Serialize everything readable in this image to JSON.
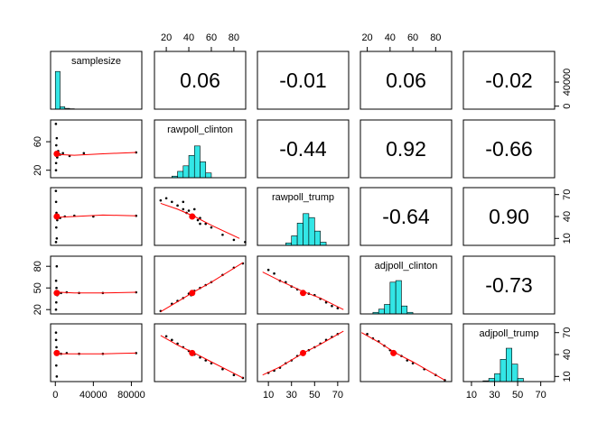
{
  "chart_data": {
    "type": "pairs",
    "point_color": "#000000",
    "hist_color": "#33E6E6",
    "fit_color": "#FF0000",
    "variables": [
      {
        "name": "samplesize",
        "lim": [
          -5000,
          91000
        ],
        "xticks": [
          0,
          40000,
          80000
        ],
        "yticks": [
          0,
          40000
        ],
        "mean": 1500,
        "hist": {
          "bins": [
            0,
            5000,
            10000,
            15000,
            20000
          ],
          "counts": [
            95,
            6,
            2,
            1
          ],
          "ylim": [
            0,
            100
          ]
        }
      },
      {
        "name": "rawpoll_clinton",
        "lim": [
          9.5,
          90.5
        ],
        "xticks": [
          20,
          40,
          60,
          80
        ],
        "yticks": [
          20,
          60
        ],
        "mean": 43,
        "hist": {
          "bins": [
            25,
            30,
            35,
            40,
            45,
            50,
            55,
            60
          ],
          "counts": [
            2,
            8,
            15,
            28,
            40,
            20,
            6
          ],
          "ylim": [
            0,
            50
          ]
        }
      },
      {
        "name": "rawpoll_trump",
        "lim": [
          0.5,
          79.5
        ],
        "xticks": [
          10,
          30,
          50,
          70
        ],
        "yticks": [
          10,
          40,
          70
        ],
        "mean": 40,
        "hist": {
          "bins": [
            25,
            30,
            35,
            40,
            45,
            50,
            55,
            60
          ],
          "counts": [
            3,
            12,
            28,
            40,
            35,
            18,
            4
          ],
          "ylim": [
            0,
            50
          ]
        }
      },
      {
        "name": "adjpoll_clinton",
        "lim": [
          14,
          94
        ],
        "xticks": [
          20,
          40,
          60,
          80
        ],
        "yticks": [
          20,
          50,
          80
        ],
        "mean": 43,
        "hist": {
          "bins": [
            25,
            30,
            35,
            40,
            45,
            50,
            55,
            60
          ],
          "counts": [
            2,
            6,
            12,
            40,
            42,
            10,
            2
          ],
          "ylim": [
            0,
            50
          ]
        }
      },
      {
        "name": "adjpoll_trump",
        "lim": [
          3,
          82
        ],
        "xticks": [
          10,
          30,
          50,
          70
        ],
        "yticks": [
          10,
          40,
          70
        ],
        "mean": 42,
        "hist": {
          "bins": [
            20,
            25,
            30,
            35,
            40,
            45,
            50,
            55
          ],
          "counts": [
            1,
            4,
            10,
            28,
            42,
            22,
            4
          ],
          "ylim": [
            0,
            50
          ]
        }
      }
    ],
    "correlations": [
      {
        "value": 0.06,
        "label": "0.06"
      },
      {
        "value": -0.01,
        "label": "-0.01"
      },
      {
        "value": 0.06,
        "label": "0.06"
      },
      {
        "value": -0.02,
        "label": "-0.02"
      },
      {
        "value": -0.44,
        "label": "-0.44"
      },
      {
        "value": 0.92,
        "label": "0.92"
      },
      {
        "value": -0.66,
        "label": "-0.66"
      },
      {
        "value": -0.64,
        "label": "-0.64"
      },
      {
        "value": 0.9,
        "label": "0.90"
      },
      {
        "value": -0.73,
        "label": "-0.73"
      }
    ],
    "panels": [
      {
        "x": [
          500,
          800,
          1000,
          1200,
          1500,
          2000,
          3000,
          5000,
          8000,
          15000,
          30000,
          85000,
          600,
          700
        ],
        "y": [
          45,
          30,
          55,
          40,
          65,
          38,
          47,
          42,
          44,
          40,
          44,
          45,
          85,
          20
        ],
        "loess_x": [
          0,
          5000,
          20000,
          50000,
          85000
        ],
        "loess_y": [
          41,
          42,
          41,
          43,
          45
        ]
      },
      {
        "x": [
          500,
          800,
          1000,
          1200,
          1500,
          2000,
          3000,
          5000,
          10000,
          20000,
          40000,
          85000,
          600,
          700
        ],
        "y": [
          40,
          60,
          25,
          45,
          10,
          35,
          42,
          38,
          40,
          41,
          40,
          41,
          75,
          5
        ],
        "loess_x": [
          0,
          5000,
          20000,
          50000,
          85000
        ],
        "loess_y": [
          40,
          39,
          40,
          42,
          41
        ]
      },
      {
        "x": [
          15,
          20,
          25,
          30,
          35,
          38,
          40,
          42,
          45,
          48,
          50,
          55,
          60,
          70,
          80,
          90,
          35,
          45,
          50
        ],
        "y": [
          62,
          65,
          60,
          55,
          50,
          45,
          48,
          42,
          40,
          35,
          38,
          30,
          25,
          15,
          8,
          5,
          60,
          50,
          30
        ],
        "loess_x": [
          15,
          30,
          45,
          60,
          85
        ],
        "loess_y": [
          58,
          50,
          40,
          28,
          10
        ]
      },
      {
        "x": [
          500,
          800,
          1000,
          1200,
          1500,
          2000,
          3000,
          6000,
          12000,
          25000,
          50000,
          85000,
          700
        ],
        "y": [
          44,
          60,
          30,
          50,
          80,
          40,
          45,
          43,
          44,
          43,
          43,
          44,
          20
        ],
        "loess_x": [
          0,
          5000,
          20000,
          50000,
          85000
        ],
        "loess_y": [
          43,
          44,
          43,
          43,
          44
        ]
      },
      {
        "x": [
          15,
          25,
          30,
          35,
          40,
          42,
          45,
          50,
          55,
          60,
          70,
          80,
          88
        ],
        "y": [
          18,
          28,
          32,
          36,
          42,
          40,
          46,
          50,
          54,
          58,
          68,
          78,
          84
        ],
        "loess_x": [
          15,
          30,
          45,
          60,
          88
        ],
        "loess_y": [
          17,
          31,
          45,
          58,
          85
        ]
      },
      {
        "x": [
          10,
          15,
          20,
          25,
          30,
          35,
          40,
          45,
          50,
          55,
          60,
          65,
          70
        ],
        "y": [
          75,
          70,
          60,
          58,
          52,
          48,
          45,
          42,
          40,
          35,
          30,
          25,
          22
        ],
        "loess_x": [
          5,
          20,
          40,
          55,
          75
        ],
        "loess_y": [
          72,
          60,
          45,
          36,
          20
        ]
      },
      {
        "x": [
          500,
          800,
          1000,
          1200,
          1500,
          2000,
          3000,
          6000,
          12000,
          25000,
          50000,
          85000,
          700
        ],
        "y": [
          42,
          60,
          25,
          50,
          10,
          40,
          44,
          41,
          42,
          41,
          41,
          42,
          70
        ],
        "loess_x": [
          0,
          5000,
          20000,
          50000,
          85000
        ],
        "loess_y": [
          42,
          41,
          41,
          41,
          42
        ]
      },
      {
        "x": [
          20,
          25,
          30,
          35,
          40,
          42,
          45,
          50,
          55,
          60,
          70,
          80,
          88
        ],
        "y": [
          65,
          60,
          55,
          50,
          45,
          42,
          40,
          36,
          32,
          28,
          20,
          12,
          8
        ],
        "loess_x": [
          15,
          30,
          45,
          60,
          88
        ],
        "loess_y": [
          66,
          53,
          42,
          30,
          8
        ]
      },
      {
        "x": [
          10,
          15,
          20,
          25,
          30,
          35,
          40,
          45,
          50,
          55,
          60,
          65,
          70
        ],
        "y": [
          15,
          18,
          22,
          28,
          32,
          38,
          42,
          46,
          50,
          55,
          60,
          64,
          68
        ],
        "loess_x": [
          5,
          20,
          40,
          55,
          75
        ],
        "loess_y": [
          12,
          23,
          42,
          54,
          72
        ]
      },
      {
        "x": [
          20,
          25,
          30,
          35,
          40,
          42,
          45,
          50,
          55,
          60,
          70,
          80,
          88
        ],
        "y": [
          68,
          62,
          58,
          52,
          46,
          44,
          42,
          38,
          32,
          28,
          20,
          12,
          5
        ],
        "loess_x": [
          15,
          30,
          45,
          60,
          88
        ],
        "loess_y": [
          70,
          57,
          42,
          30,
          5
        ]
      }
    ]
  }
}
